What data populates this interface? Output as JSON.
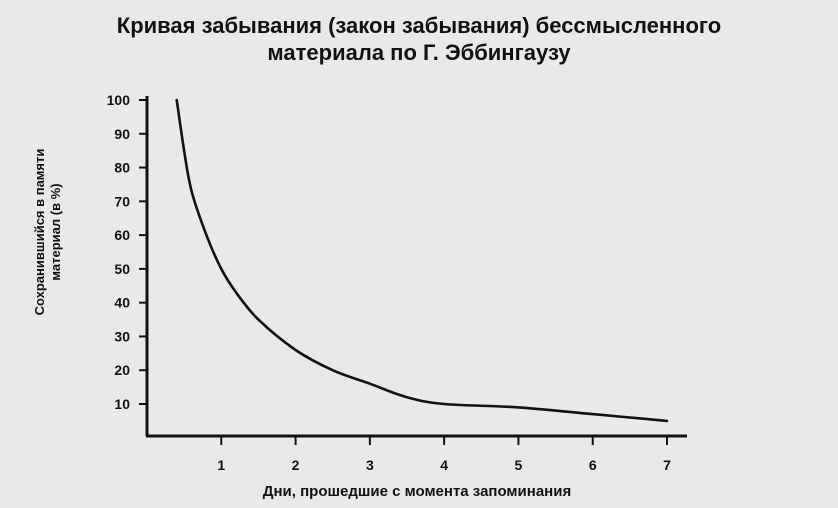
{
  "chart_data": {
    "type": "line",
    "title_lines": [
      "Кривая забывания (закон забывания) бессмысленного",
      "материала по Г. Эббингаузу"
    ],
    "xlabel": "Дни, прошедшие с момента запоминания",
    "ylabel_lines": [
      "Сохранившийся в памяти",
      "материал (в %)"
    ],
    "x_ticks": [
      1,
      2,
      3,
      4,
      5,
      6,
      7
    ],
    "y_ticks": [
      10,
      20,
      30,
      40,
      50,
      60,
      70,
      80,
      90,
      100
    ],
    "xlim": [
      0,
      7.3
    ],
    "ylim": [
      0,
      100
    ],
    "grid": false,
    "series": [
      {
        "x": [
          0.4,
          0.5,
          0.6,
          0.8,
          1.0,
          1.2,
          1.5,
          2.0,
          2.5,
          3.0,
          3.5,
          4.0,
          5.0,
          6.0,
          7.0
        ],
        "y": [
          100,
          85,
          73,
          60,
          50,
          43,
          35,
          26,
          20,
          16,
          12,
          10,
          9,
          7,
          5
        ]
      }
    ],
    "line_color": "#111111"
  }
}
